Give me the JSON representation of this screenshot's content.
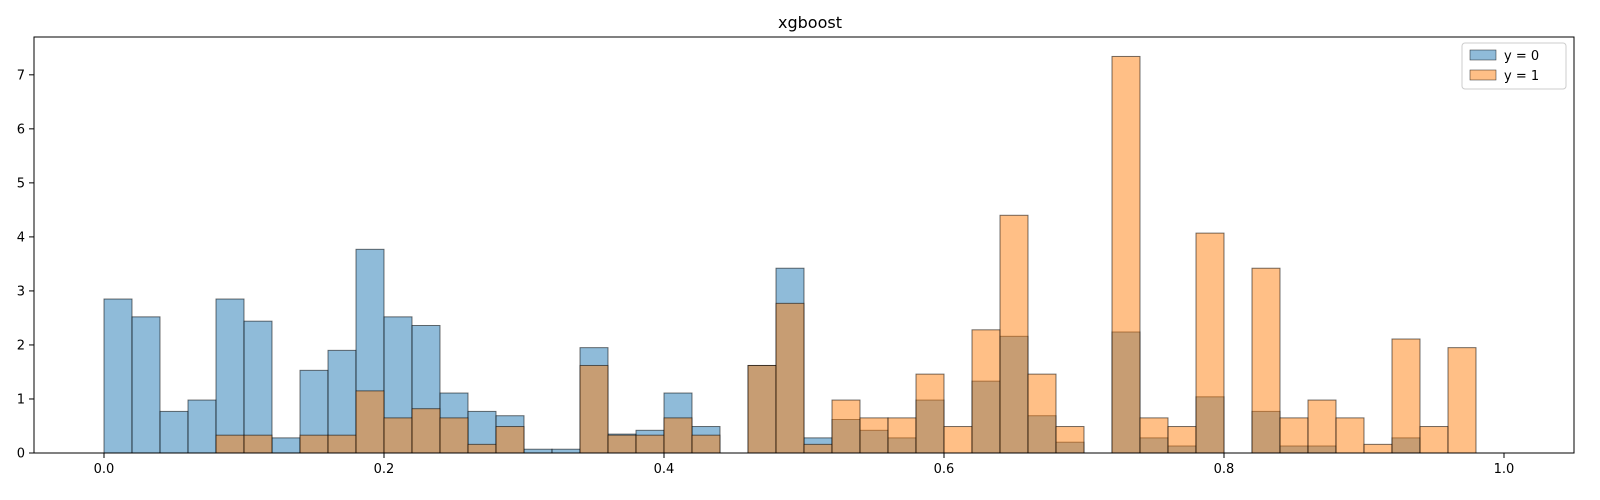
{
  "chart_data": {
    "type": "bar",
    "title": "xgboost",
    "xlabel": "",
    "ylabel": "",
    "xlim": [
      -0.05,
      1.05
    ],
    "ylim": [
      0,
      7.7
    ],
    "xticks": [
      0.0,
      0.2,
      0.4,
      0.6,
      0.8,
      1.0
    ],
    "xtick_labels": [
      "0.0",
      "0.2",
      "0.4",
      "0.6",
      "0.8",
      "1.0"
    ],
    "yticks": [
      0,
      1,
      2,
      3,
      4,
      5,
      6,
      7
    ],
    "ytick_labels": [
      "0",
      "1",
      "2",
      "3",
      "4",
      "5",
      "6",
      "7"
    ],
    "bin_width": 0.02,
    "bin_starts": [
      0.0,
      0.02,
      0.04,
      0.06,
      0.08,
      0.1,
      0.12,
      0.14,
      0.16,
      0.18,
      0.2,
      0.22,
      0.24,
      0.26,
      0.28,
      0.3,
      0.32,
      0.34,
      0.36,
      0.38,
      0.4,
      0.42,
      0.44,
      0.46,
      0.48,
      0.5,
      0.52,
      0.54,
      0.56,
      0.58,
      0.6,
      0.62,
      0.64,
      0.66,
      0.68,
      0.7,
      0.72,
      0.74,
      0.76,
      0.78,
      0.8,
      0.82,
      0.84,
      0.86,
      0.88,
      0.9,
      0.92,
      0.94,
      0.96,
      0.98
    ],
    "legend_position": "top-right",
    "grid": false,
    "series": [
      {
        "name": "y = 0",
        "color": "#1f77b4",
        "values": [
          2.85,
          2.52,
          0.77,
          0.98,
          2.85,
          2.44,
          0.28,
          1.53,
          1.9,
          3.77,
          2.52,
          2.36,
          1.11,
          0.77,
          0.69,
          0.07,
          0.07,
          1.95,
          0.35,
          0.42,
          1.11,
          0.49,
          0,
          1.62,
          3.42,
          0.28,
          0.62,
          0.42,
          0.28,
          0.98,
          0,
          1.33,
          2.16,
          0.69,
          0.2,
          0,
          2.24,
          0.28,
          0.13,
          1.04,
          0,
          0.77,
          0.13,
          0.13,
          0,
          0,
          0.28,
          0,
          0,
          0
        ]
      },
      {
        "name": "y = 1",
        "color": "#ff7f0e",
        "values": [
          0,
          0,
          0,
          0,
          0.33,
          0.33,
          0,
          0.33,
          0.33,
          1.15,
          0.65,
          0.82,
          0.65,
          0.16,
          0.49,
          0,
          0,
          1.62,
          0.33,
          0.33,
          0.65,
          0.33,
          0,
          1.62,
          2.77,
          0.16,
          0.98,
          0.65,
          0.65,
          1.46,
          0.49,
          2.28,
          4.4,
          1.46,
          0.49,
          0,
          7.34,
          0.65,
          0.49,
          4.07,
          0,
          3.42,
          0.65,
          0.98,
          0.65,
          0.16,
          2.11,
          0.49,
          1.95,
          0
        ]
      }
    ]
  }
}
